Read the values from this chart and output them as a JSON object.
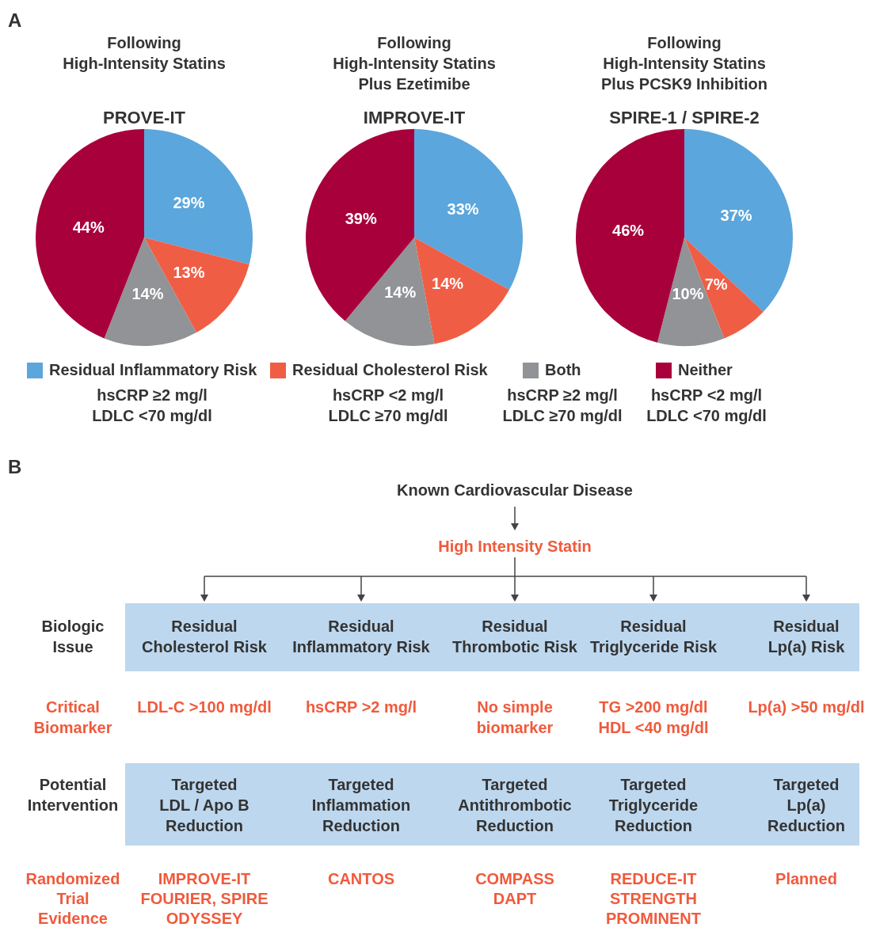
{
  "chart_data": [
    {
      "type": "pie",
      "title": "Following\nHigh-Intensity Statins",
      "subtitle": "PROVE-IT",
      "categories": [
        "Residual Inflammatory Risk",
        "Residual Cholesterol Risk",
        "Both",
        "Neither"
      ],
      "values": [
        29,
        13,
        14,
        44
      ],
      "value_labels": [
        "29%",
        "13%",
        "14%",
        "44%"
      ],
      "colors": [
        "#5ba6dc",
        "#f05d45",
        "#919396",
        "#a8003a"
      ],
      "legend": "bottom",
      "annotations": [
        "A",
        "hsCRP ≥2 mg/l\nLDLC <70 mg/dl",
        "hsCRP <2 mg/l\nLDLC ≥70 mg/dl",
        "hsCRP ≥2 mg/l\nLDLC ≥70 mg/dl",
        "hsCRP <2 mg/l\nLDLC <70 mg/dl"
      ]
    },
    {
      "type": "pie",
      "title": "Following\nHigh-Intensity Statins\nPlus Ezetimibe",
      "subtitle": "IMPROVE-IT",
      "categories": [
        null,
        null,
        null,
        null
      ],
      "values": [
        33,
        14,
        14,
        39
      ],
      "value_labels": [
        "33%",
        "14%",
        "14%",
        "39%"
      ],
      "colors": [
        "#5ba6dc",
        "#f05d45",
        "#919396",
        "#a8003a"
      ]
    },
    {
      "type": "pie",
      "title": "Following\nHigh-Intensity Statins\nPlus PCSK9 Inhibition",
      "subtitle": "SPIRE-1 / SPIRE-2",
      "categories": [
        null,
        null,
        null,
        null
      ],
      "values": [
        37,
        7,
        10,
        46
      ],
      "value_labels": [
        "37%",
        "7%",
        "10%",
        "46%"
      ],
      "colors": [
        "#5ba6dc",
        "#f05d45",
        "#919396",
        "#a8003a"
      ]
    },
    {
      "type": "other",
      "annotations": [
        "B",
        "Known Cardiovascular Disease",
        "High Intensity Statin",
        "Biologic\nIssue",
        "Residual\nCholesterol Risk",
        "Residual\nInflammatory Risk",
        "Residual\nThrombotic Risk",
        "Residual\nTriglyceride Risk",
        "Residual\nLp(a) Risk",
        "Critical\nBiomarker",
        "LDL-C >100 mg/dl",
        "hsCRP >2 mg/l",
        "No simple\nbiomarker",
        "TG >200 mg/dl\nHDL <40 mg/dl",
        "Lp(a) >50 mg/dl",
        "Potential\nIntervention",
        "Targeted\nLDL / Apo B\nReduction",
        "Targeted\nInflammation\nReduction",
        "Targeted\nAntithrombotic\nReduction",
        "Targeted\nTriglyceride\nReduction",
        "Targeted\nLp(a)\nReduction",
        "Randomized\nTrial\nEvidence",
        "IMPROVE-IT\nFOURIER, SPIRE\nODYSSEY",
        "CANTOS",
        "COMPASS\nDAPT",
        "REDUCE-IT\nSTRENGTH\nPROMINENT",
        "Planned"
      ]
    }
  ]
}
